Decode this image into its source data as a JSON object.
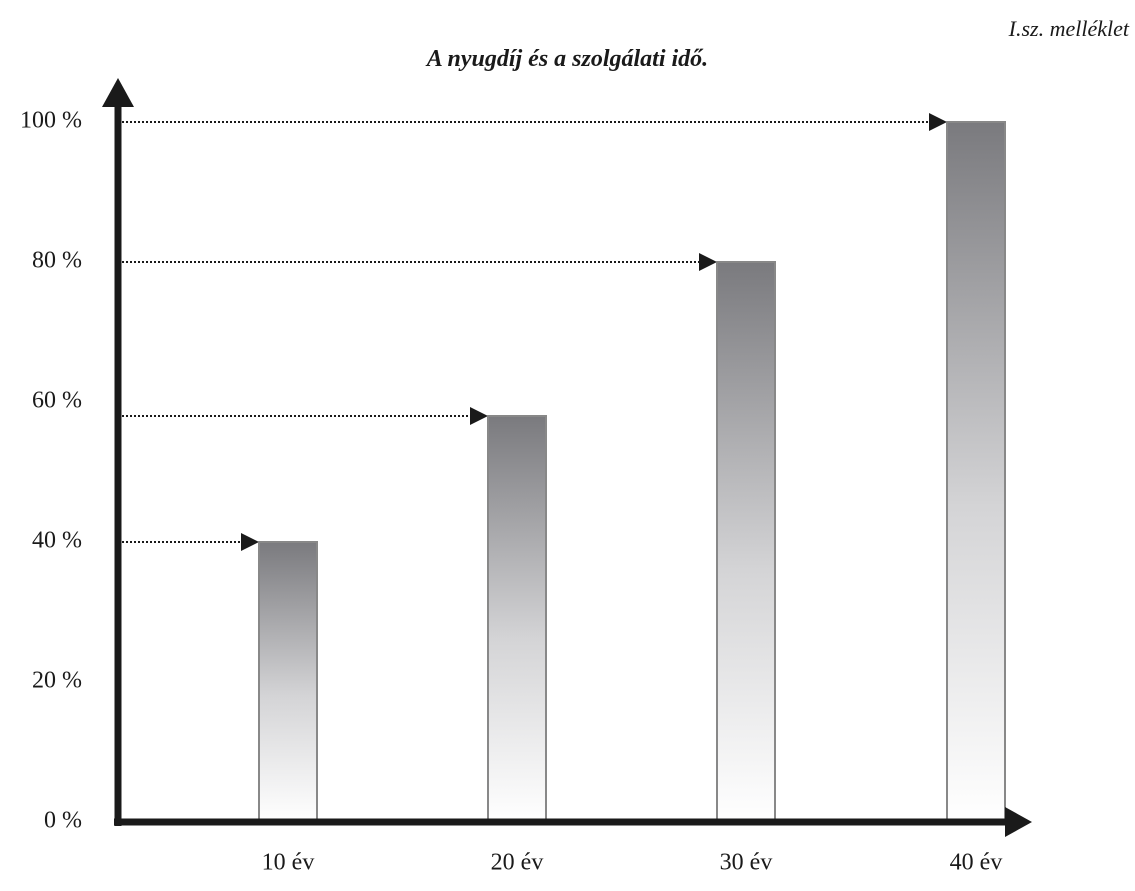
{
  "annex_label": "I.sz. melléklet",
  "chart_data": {
    "type": "bar",
    "title": "A nyugdíj és a szolgálati idő.",
    "categories": [
      "10 év",
      "20 év",
      "30 év",
      "40 év"
    ],
    "values": [
      40,
      58,
      80,
      100
    ],
    "y_ticks": [
      0,
      20,
      40,
      60,
      80,
      100
    ],
    "y_tick_labels": [
      "0 %",
      "20 %",
      "40 %",
      "60 %",
      "80 %",
      "100 %"
    ],
    "ylim": [
      0,
      100
    ],
    "xlabel": "",
    "ylabel": "",
    "grid": false,
    "legend": "none",
    "reference_arrows": true,
    "colors": {
      "bar_top": "#7a7a7e",
      "bar_bottom": "#ffffff",
      "bar_border": "#888888",
      "axis": "#1a1a1a",
      "guide": "#1a1a1a"
    }
  }
}
